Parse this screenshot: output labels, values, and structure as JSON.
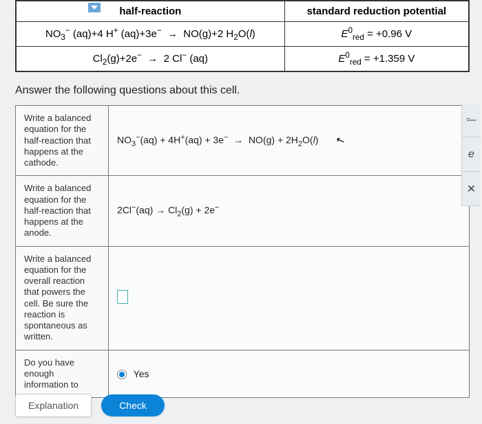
{
  "top_table": {
    "headers": [
      "half-reaction",
      "standard reduction potential"
    ],
    "rows": [
      {
        "reaction": "NO₃⁻ (aq) + 4 H⁺ (aq) + 3e⁻  →  NO(g) + 2 H₂O(l)",
        "potential": "E⁰red = +0.96 V"
      },
      {
        "reaction": "Cl₂(g) + 2e⁻  →  2 Cl⁻ (aq)",
        "potential": "E⁰red = +1.359 V"
      }
    ]
  },
  "prompt": "Answer the following questions about this cell.",
  "answer_rows": {
    "r1": {
      "desc": "Write a balanced equation for the half-reaction that happens at the cathode.",
      "ans": "NO₃⁻(aq) + 4H⁺(aq) + 3e⁻  →  NO(g) + 2H₂O(l)"
    },
    "r2": {
      "desc": "Write a balanced equation for the half-reaction that happens at the anode.",
      "ans": "2Cl⁻(aq) → Cl₂(g) + 2e⁻"
    },
    "r3": {
      "desc": "Write a balanced equation for the overall reaction that powers the cell. Be sure the reaction is spontaneous as written.",
      "ans": ""
    },
    "r4": {
      "desc": "Do you have enough information to",
      "ans": "Yes"
    }
  },
  "toolbar": {
    "t1": "▫–",
    "t2": "e",
    "t3": "✕"
  },
  "buttons": {
    "explanation": "Explanation",
    "check": "Check"
  },
  "colors": {
    "accent": "#0b84d8",
    "border": "#333",
    "bg": "#eef0f2"
  }
}
